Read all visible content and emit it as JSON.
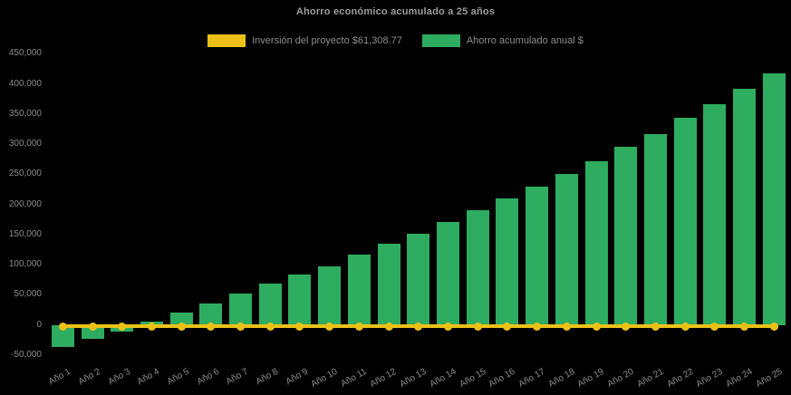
{
  "title": "Ahorro económico acumulado a 25 años",
  "legend": {
    "items": [
      {
        "label": "Inversión del proyecto $61,308.77",
        "color": "#eac117"
      },
      {
        "label": "Ahorro acumulado anual $",
        "color": "#2eac5f"
      }
    ]
  },
  "chart_data": {
    "type": "bar",
    "title": "Ahorro económico acumulado a 25 años",
    "background": "#000000",
    "grid": false,
    "legend_position": "top",
    "xlabel": "",
    "ylabel": "",
    "ylim": [
      -50000,
      450000
    ],
    "y_ticks": [
      450000,
      400000,
      350000,
      300000,
      250000,
      200000,
      150000,
      100000,
      50000,
      0,
      -50000
    ],
    "categories": [
      "Año 1",
      "Año 2",
      "Año 3",
      "Año 4",
      "Año 5",
      "Año 6",
      "Año 7",
      "Año 8",
      "Año 9",
      "Año 10",
      "Año 11",
      "Año 12",
      "Año 13",
      "Año 14",
      "Año 15",
      "Año 16",
      "Año 17",
      "Año 18",
      "Año 19",
      "Año 20",
      "Año 21",
      "Año 22",
      "Año 23",
      "Año 24",
      "Año 25"
    ],
    "series": [
      {
        "name": "Inversión del proyecto $61,308.77",
        "type": "line",
        "color": "#eac117",
        "marker": "circle",
        "values": [
          0,
          0,
          0,
          0,
          0,
          0,
          0,
          0,
          0,
          0,
          0,
          0,
          0,
          0,
          0,
          0,
          0,
          0,
          0,
          0,
          0,
          0,
          0,
          0,
          0
        ]
      },
      {
        "name": "Ahorro acumulado anual $",
        "type": "bar",
        "color": "#2eac5f",
        "values": [
          -36000,
          -23500,
          -11500,
          5500,
          20000,
          35000,
          52000,
          68000,
          84000,
          98000,
          117000,
          134500,
          152000,
          171000,
          190000,
          210000,
          230000,
          251000,
          272000,
          295000,
          317000,
          343000,
          366000,
          392000,
          418000
        ]
      }
    ]
  }
}
